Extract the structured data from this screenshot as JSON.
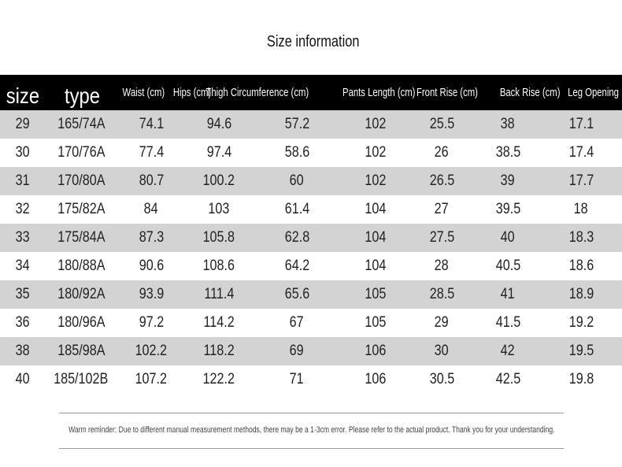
{
  "title": "Size information",
  "columns": [
    "size",
    "type",
    "Waist (cm)",
    "Hips (cm)",
    "Thigh Circumference (cm)",
    "Pants Length (cm)",
    "Front Rise (cm)",
    "Back Rise (cm)",
    "Leg Opening"
  ],
  "rows": [
    [
      "29",
      "165/74A",
      "74.1",
      "94.6",
      "57.2",
      "102",
      "25.5",
      "38",
      "17.1"
    ],
    [
      "30",
      "170/76A",
      "77.4",
      "97.4",
      "58.6",
      "102",
      "26",
      "38.5",
      "17.4"
    ],
    [
      "31",
      "170/80A",
      "80.7",
      "100.2",
      "60",
      "102",
      "26.5",
      "39",
      "17.7"
    ],
    [
      "32",
      "175/82A",
      "84",
      "103",
      "61.4",
      "104",
      "27",
      "39.5",
      "18"
    ],
    [
      "33",
      "175/84A",
      "87.3",
      "105.8",
      "62.8",
      "104",
      "27.5",
      "40",
      "18.3"
    ],
    [
      "34",
      "180/88A",
      "90.6",
      "108.6",
      "64.2",
      "104",
      "28",
      "40.5",
      "18.6"
    ],
    [
      "35",
      "180/92A",
      "93.9",
      "111.4",
      "65.6",
      "105",
      "28.5",
      "41",
      "18.9"
    ],
    [
      "36",
      "180/96A",
      "97.2",
      "114.2",
      "67",
      "105",
      "29",
      "41.5",
      "19.2"
    ],
    [
      "38",
      "185/98A",
      "102.2",
      "118.2",
      "69",
      "106",
      "30",
      "42",
      "19.5"
    ],
    [
      "40",
      "185/102B",
      "107.2",
      "122.2",
      "71",
      "106",
      "30.5",
      "42.5",
      "19.8"
    ]
  ],
  "note": "Warm reminder: Due to different manual measurement methods, there may be a 1-3cm error. Please refer to the actual product. Thank you for your understanding.",
  "colors": {
    "header_bg": "#000000",
    "stripe_bg": "#d3d3d3"
  }
}
